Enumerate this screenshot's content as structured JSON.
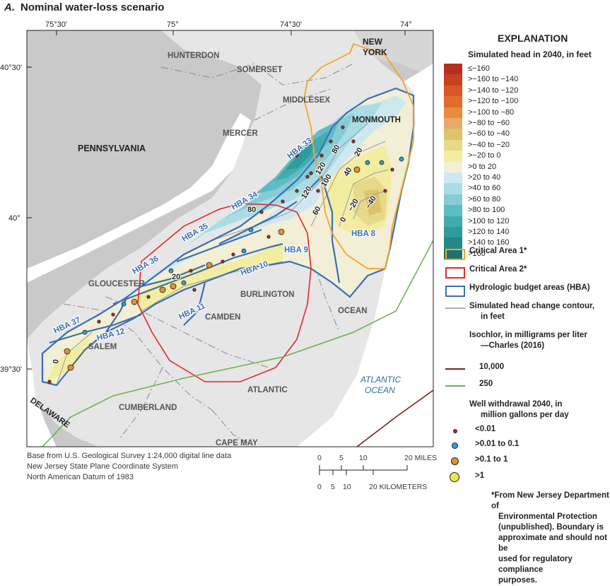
{
  "figure": {
    "letter": "A.",
    "title": "Nominal water-loss scenario"
  },
  "graticule": {
    "top": [
      "75°30'",
      "75°",
      "74°30'",
      "74°"
    ],
    "left": [
      "40°30'",
      "40°",
      "39°30'"
    ]
  },
  "places": {
    "states": [
      "PENNSYLVANIA",
      "NEW",
      "YORK",
      "DELAWARE"
    ],
    "counties": [
      "HUNTERDON",
      "SOMERSET",
      "MIDDLESEX",
      "MERCER",
      "MONMOUTH",
      "GLOUCESTER",
      "BURLINGTON",
      "CAMDEN",
      "SALEM",
      "OCEAN",
      "ATLANTIC",
      "CUMBERLAND",
      "CAPE MAY"
    ],
    "ocean": [
      "ATLANTIC",
      "OCEAN"
    ]
  },
  "hba_labels": [
    "HBA 33",
    "HBA 34",
    "HBA 35",
    "HBA 36",
    "HBA 37",
    "HBA 12",
    "HBA 11",
    "HBA 10",
    "HBA 9",
    "HBA 8"
  ],
  "contour_labels": [
    "80",
    "120",
    "100",
    "40",
    "20",
    "80",
    "120",
    "60",
    "0",
    "−20",
    "−40",
    "20",
    "0"
  ],
  "legend": {
    "title": "EXPLANATION",
    "head_title": "Simulated head in 2040, in feet",
    "head_classes": [
      {
        "label": "≤−160",
        "color": "#b5311e"
      },
      {
        "label": ">−160 to −140",
        "color": "#c8401f"
      },
      {
        "label": ">−140 to −120",
        "color": "#d9552a"
      },
      {
        "label": ">−120 to −100",
        "color": "#e26c2d"
      },
      {
        "label": ">−100 to −80",
        "color": "#ea8d3a"
      },
      {
        "label": ">−80 to −60",
        "color": "#e8aa6b"
      },
      {
        "label": ">−60 to −40",
        "color": "#ddc36c"
      },
      {
        "label": ">−40 to −20",
        "color": "#e7d98a"
      },
      {
        "label": ">−20 to 0",
        "color": "#f3eda2"
      },
      {
        "label": ">0 to 20",
        "color": "#f3efd6"
      },
      {
        "label": ">20 to 40",
        "color": "#cfe8ef"
      },
      {
        "label": ">40 to 60",
        "color": "#a9dce4"
      },
      {
        "label": ">60 to 80",
        "color": "#86ccd6"
      },
      {
        "label": ">80 to 100",
        "color": "#5fbcc4"
      },
      {
        "label": ">100 to 120",
        "color": "#43aab0"
      },
      {
        "label": ">120 to 140",
        "color": "#2f9b9c"
      },
      {
        "label": ">140 to 160",
        "color": "#248887"
      },
      {
        "label": ">160",
        "color": "#1a7371"
      }
    ],
    "critical_area_1": "Critical Area 1*",
    "critical_area_2": "Critical Area 2*",
    "hba": "Hydrologic budget areas (HBA)",
    "contour_line1": "Simulated head change contour,",
    "contour_line2": "in feet",
    "isochlor_title": "Isochlor, in milligrams per liter",
    "isochlor_src": "—Charles (2016)",
    "isochlor_10000": "10,000",
    "isochlor_250": "250",
    "well_title1": "Well withdrawal 2040, in",
    "well_title2": "million gallons per day",
    "well_classes": [
      "<0.01",
      ">0.01 to 0.1",
      ">0.1 to 1",
      ">1"
    ],
    "colors": {
      "critical1": "#f5a623",
      "critical2": "#e0282e",
      "hba": "#3a6fb5",
      "contour": "#9a9a9a",
      "isochlor10000": "#7a1e1e",
      "isochlor250": "#6ab04c"
    }
  },
  "scale": {
    "miles_ticks": [
      "0",
      "5",
      "10",
      "20 MILES"
    ],
    "km_ticks": [
      "0",
      "5",
      "10",
      "20 KILOMETERS"
    ]
  },
  "source": [
    "Base from U.S. Geological Survey 1:24,000 digital line data",
    "New Jersey State Plane Coordinate System",
    "North American Datum of 1983"
  ],
  "note": [
    "*From New Jersey Department of",
    "Environmental Protection",
    "(unpublished). Boundary is",
    "approximate and should not be",
    "used for regulatory compliance",
    "purposes."
  ]
}
